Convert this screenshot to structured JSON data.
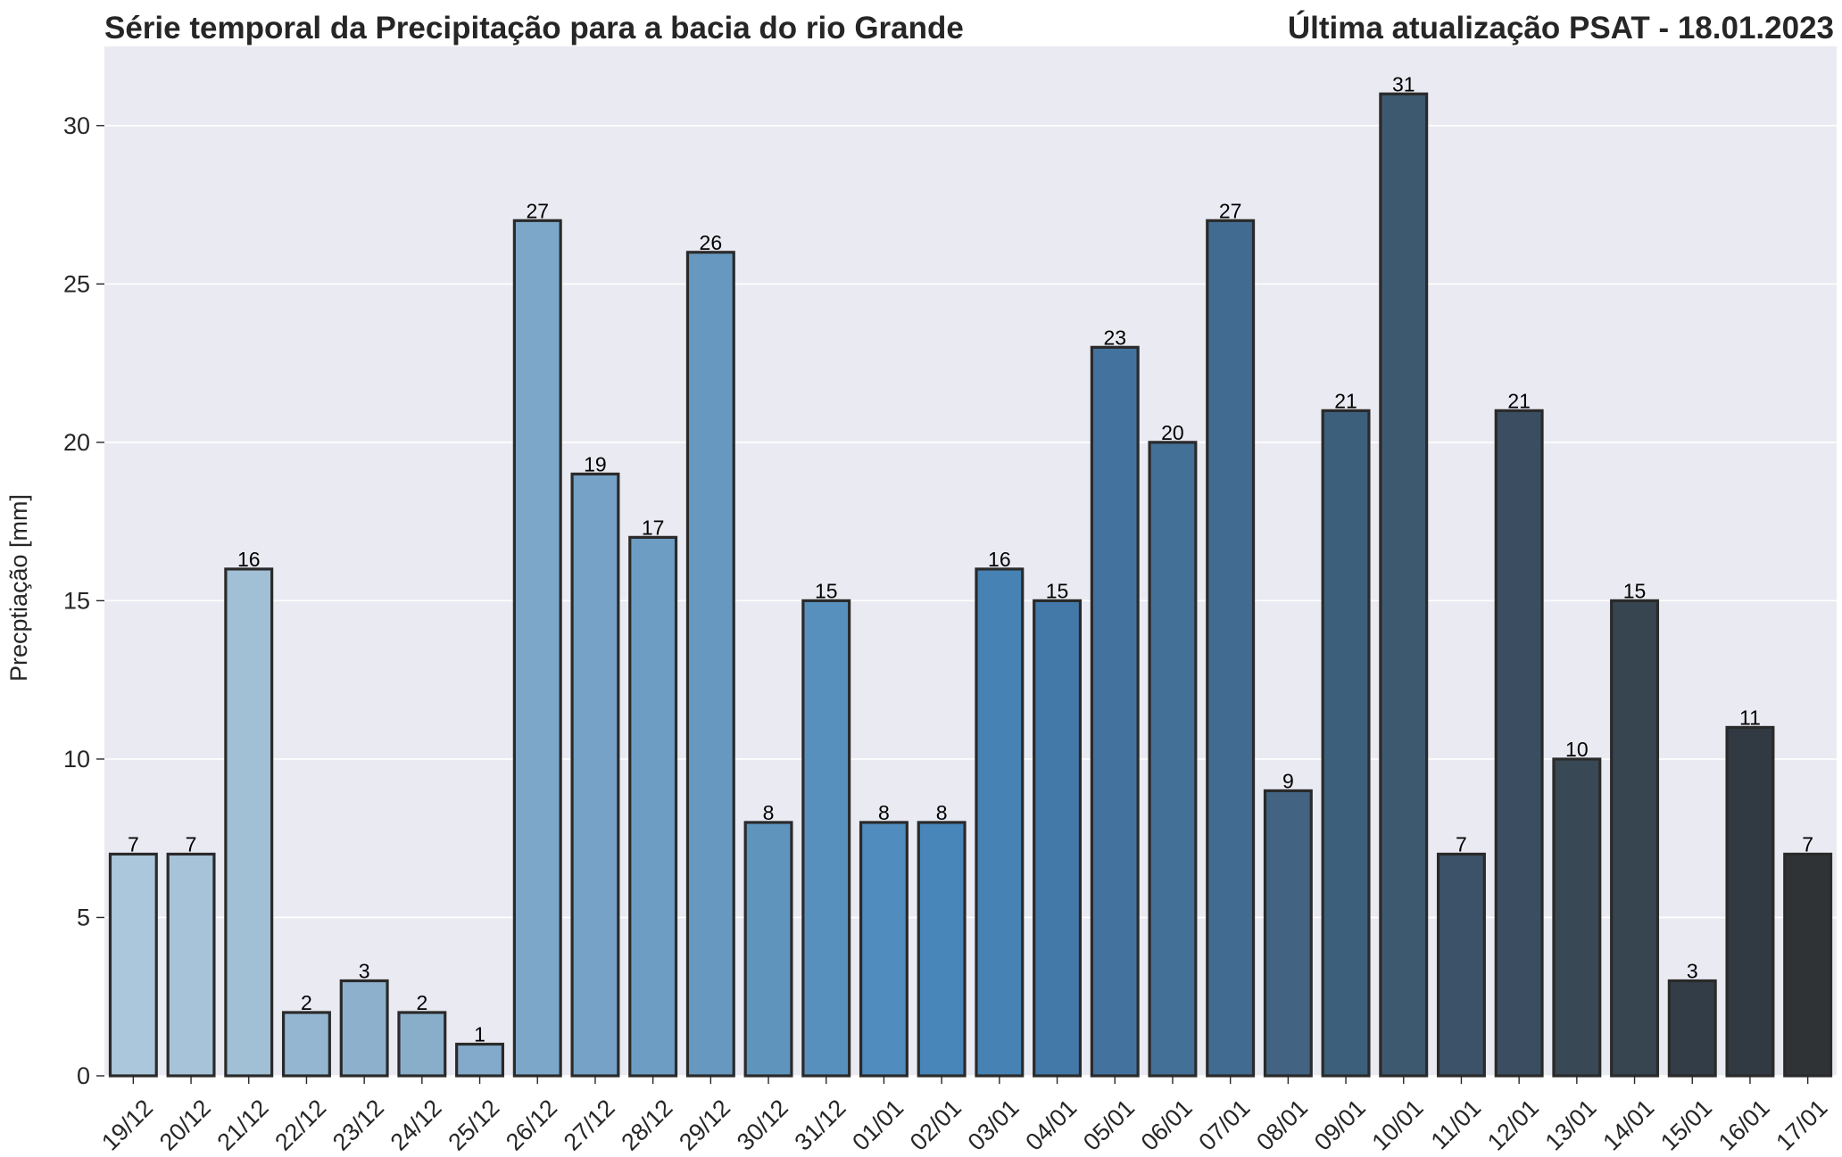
{
  "chart_data": {
    "type": "bar",
    "title": "Série temporal da Precipitação para a bacia do rio Grande",
    "subtitle": "Última atualização PSAT - 18.01.2023",
    "xlabel": "",
    "ylabel": "Precptiação [mm]",
    "ylim": [
      0,
      32.5
    ],
    "yticks": [
      0,
      5,
      10,
      15,
      20,
      25,
      30
    ],
    "grid": true,
    "categories": [
      "19/12",
      "20/12",
      "21/12",
      "22/12",
      "23/12",
      "24/12",
      "25/12",
      "26/12",
      "27/12",
      "28/12",
      "29/12",
      "30/12",
      "31/12",
      "01/01",
      "02/01",
      "03/01",
      "04/01",
      "05/01",
      "06/01",
      "07/01",
      "08/01",
      "09/01",
      "10/01",
      "11/01",
      "12/01",
      "13/01",
      "14/01",
      "15/01",
      "16/01",
      "17/01"
    ],
    "values": [
      7,
      7,
      16,
      2,
      3,
      2,
      1,
      27,
      19,
      17,
      26,
      8,
      15,
      8,
      8,
      16,
      15,
      23,
      20,
      27,
      9,
      21,
      31,
      7,
      21,
      10,
      15,
      3,
      11,
      7
    ],
    "colors": [
      "#abc7db",
      "#a7c3d9",
      "#a1bfd5",
      "#94b6d1",
      "#8db1cc",
      "#89aeca",
      "#84aacb",
      "#7ca7c9",
      "#75a2c6",
      "#6d9dc3",
      "#6698c0",
      "#5f95bd",
      "#5890bd",
      "#508cbd",
      "#4886ba",
      "#4682b4",
      "#4279a8",
      "#43729f",
      "#437097",
      "#416b90",
      "#426381",
      "#3c5f7c",
      "#3d596f",
      "#3c5268",
      "#3b4e61",
      "#394855",
      "#36454f",
      "#333d47",
      "#313a43",
      "#2f3336"
    ],
    "bar_edge_color": "#2a2a2a",
    "background_color": "#eaeaf2",
    "grid_color": "#ffffff"
  }
}
